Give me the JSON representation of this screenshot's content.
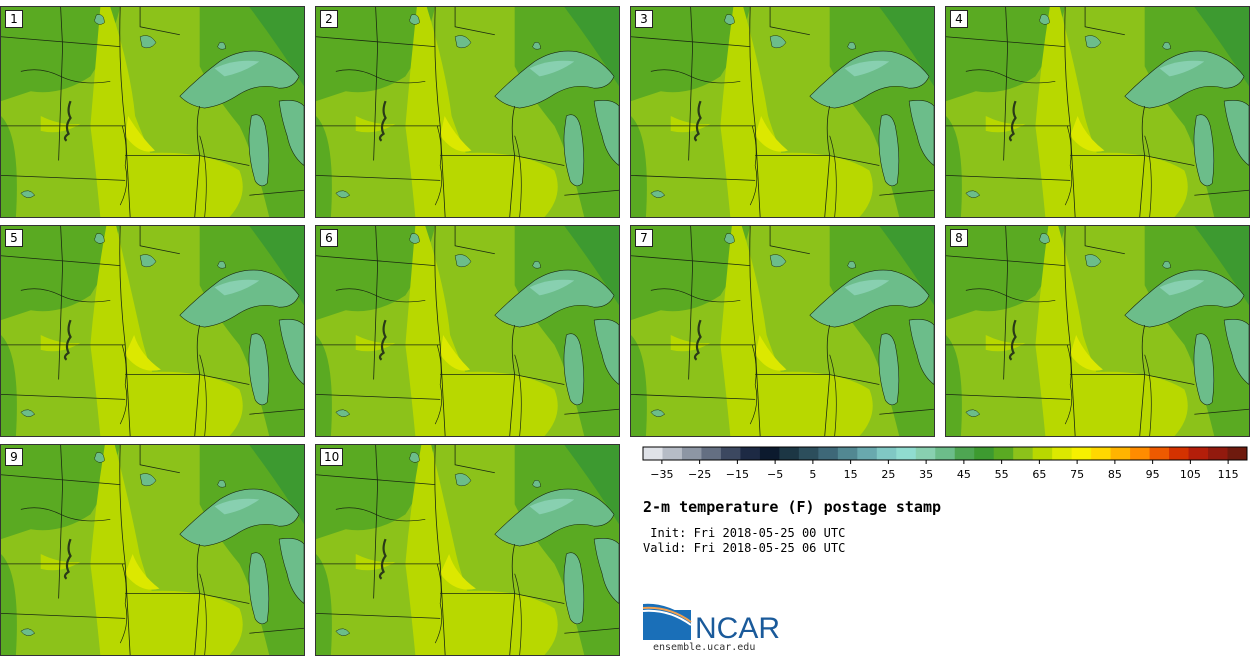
{
  "stamps": [
    "1",
    "2",
    "3",
    "4",
    "5",
    "6",
    "7",
    "8",
    "9",
    "10"
  ],
  "title": "2-m temperature (F) postage stamp",
  "init": " Init: Fri 2018-05-25 00 UTC",
  "valid": "Valid: Fri 2018-05-25 06 UTC",
  "logo_text": "NCAR",
  "site": "ensemble.ucar.edu",
  "colorbar": {
    "tick_labels": [
      "−35",
      "−25",
      "−15",
      "−5",
      "5",
      "15",
      "25",
      "35",
      "45",
      "55",
      "65",
      "75",
      "85",
      "95",
      "105",
      "115"
    ],
    "colors": [
      "#dfe2e8",
      "#b6bcc6",
      "#8d96a4",
      "#646f82",
      "#3c4860",
      "#1d2a44",
      "#0c1a2e",
      "#1c3644",
      "#2c4e5c",
      "#3e6878",
      "#528892",
      "#69a9ae",
      "#80c8c4",
      "#90dcd0",
      "#88d0b0",
      "#6cbd8a",
      "#4ea652",
      "#3d9a30",
      "#5aaa22",
      "#8cc21a",
      "#b8d800",
      "#dce800",
      "#f6f000",
      "#ffd800",
      "#ffb400",
      "#ff8c00",
      "#ee5a00",
      "#d43200",
      "#b41e0a",
      "#921a0e",
      "#6e1a0e"
    ],
    "range": [
      -40,
      120
    ]
  },
  "map_colors": {
    "base": "#8cc21a",
    "warm": "#b8d800",
    "hot": "#dce800",
    "cool": "#5aaa22",
    "cold": "#3d9a30",
    "lake": "#6cbd8a",
    "lake_deep": "#88d0b0",
    "border": "#1a2a10"
  }
}
